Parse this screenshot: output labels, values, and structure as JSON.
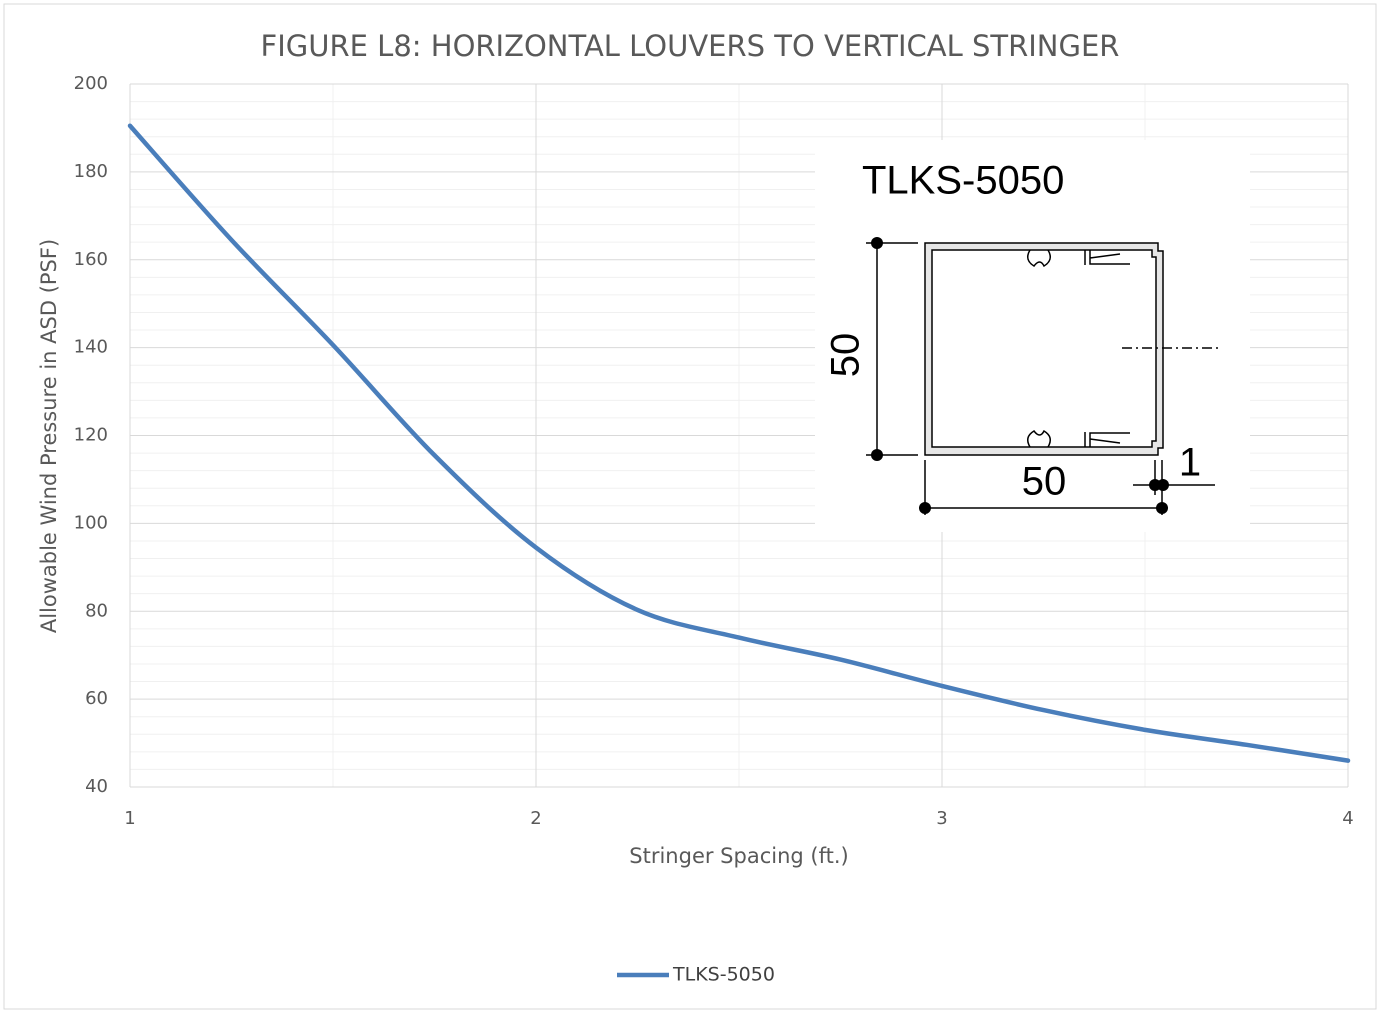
{
  "chart_data": {
    "type": "line",
    "title": "FIGURE L8: HORIZONTAL LOUVERS TO VERTICAL STRINGER",
    "x_label": "Stringer Spacing (ft.)",
    "y_label": "Allowable Wind Pressure in ASD (PSF)",
    "x": [
      1,
      1.25,
      1.5,
      1.75,
      2,
      2.25,
      2.5,
      2.75,
      3,
      3.25,
      3.5,
      3.75,
      4
    ],
    "series": [
      {
        "name": "TLKS-5050",
        "color": "#4a7ebb",
        "values": [
          190.5,
          164.5,
          140.6,
          115.5,
          94.5,
          80.3,
          74,
          69,
          63,
          57.5,
          53,
          49.6,
          46
        ]
      }
    ],
    "xlim": [
      1,
      4
    ],
    "xticks": [
      1,
      2,
      3,
      4
    ],
    "x_minor_ticks": [
      1.5,
      2.5,
      3.5
    ],
    "ylim": [
      40,
      200
    ],
    "yticks": [
      40,
      60,
      80,
      100,
      120,
      140,
      160,
      180,
      200
    ],
    "y_minor_ticks": [
      44,
      48,
      52,
      56,
      64,
      68,
      72,
      76,
      84,
      88,
      92,
      96,
      104,
      108,
      112,
      116,
      124,
      128,
      132,
      136,
      144,
      148,
      152,
      156,
      164,
      168,
      172,
      176,
      184,
      188,
      192,
      196
    ],
    "grid": true,
    "legend": "bottom",
    "inset": {
      "title": "TLKS-5050",
      "height_label": "50",
      "width_label": "50",
      "thickness_label": "1"
    }
  }
}
